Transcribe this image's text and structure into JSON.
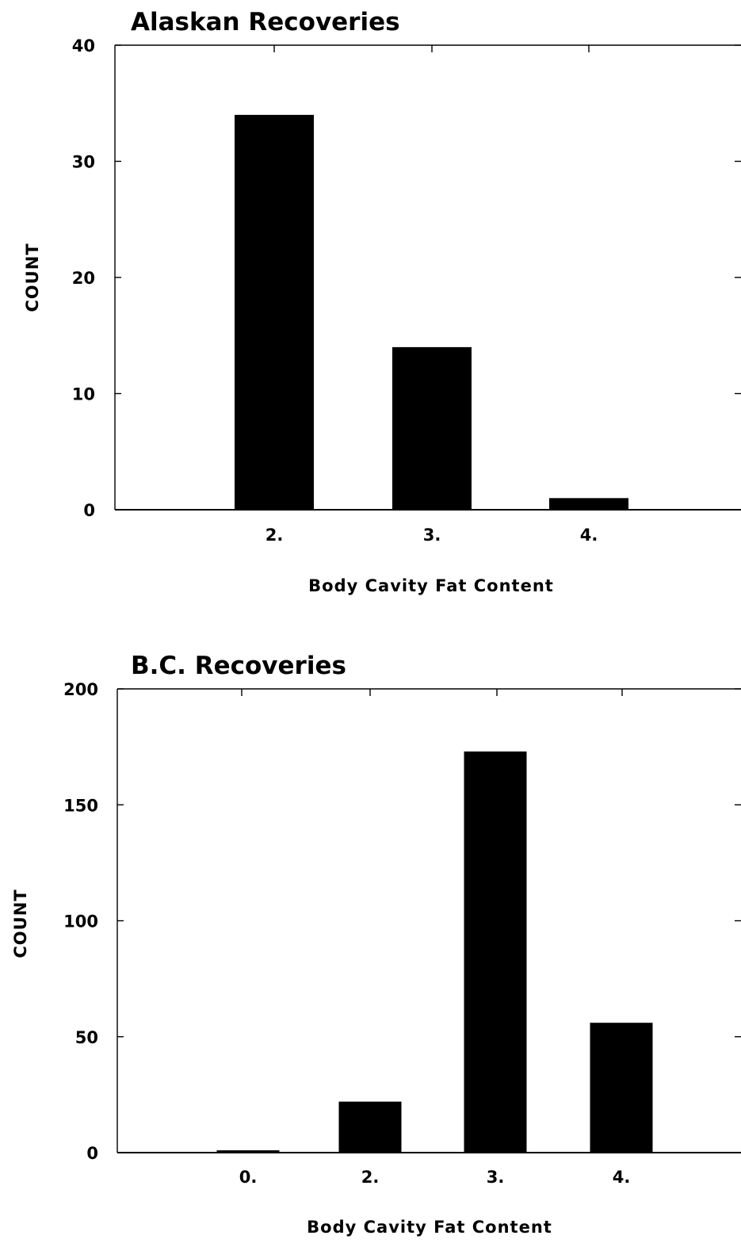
{
  "chart_data": [
    {
      "type": "bar",
      "title": "Alaskan Recoveries",
      "xlabel": "Body Cavity Fat Content",
      "ylabel": "COUNT",
      "categories": [
        "2.",
        "3.",
        "4."
      ],
      "values": [
        34,
        14,
        1
      ],
      "ylim": [
        0,
        40
      ],
      "yticks": [
        "0",
        "10",
        "20",
        "30",
        "40"
      ],
      "grid": false,
      "bar_color": "#000000"
    },
    {
      "type": "bar",
      "title": "B.C. Recoveries",
      "xlabel": "Body Cavity Fat Content",
      "ylabel": "COUNT",
      "categories": [
        "0.",
        "2.",
        "3.",
        "4."
      ],
      "values": [
        1,
        22,
        173,
        56
      ],
      "ylim": [
        0,
        200
      ],
      "yticks": [
        "0",
        "50",
        "100",
        "150",
        "200"
      ],
      "grid": false,
      "bar_color": "#000000"
    }
  ]
}
